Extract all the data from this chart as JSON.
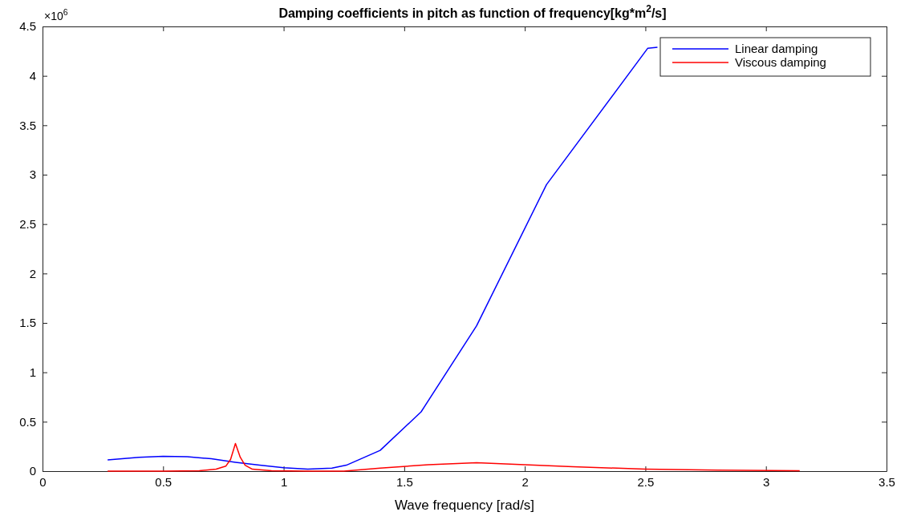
{
  "chart_data": {
    "type": "line",
    "title": "Damping coefficients in pitch as function of frequency[kg*m$^{2}$/s]",
    "xlabel": "Wave frequency [rad/s]",
    "annotations": [
      "×10$^{6}$"
    ],
    "xlim": [
      0,
      3.5
    ],
    "xticks": [
      0,
      0.5,
      1,
      1.5,
      2,
      2.5,
      3,
      3.5
    ],
    "ylim": [
      0,
      4.5
    ],
    "yticks": [
      0,
      0.5,
      1,
      1.5,
      2,
      2.5,
      3,
      3.5,
      4,
      4.5
    ],
    "grid": false,
    "legend": "top right",
    "marker": "none",
    "line_style": "solid",
    "series": [
      {
        "name": "Linear damping",
        "color": "#0000ff",
        "x": [
          0.27,
          0.4,
          0.5,
          0.6,
          0.7,
          0.8,
          0.9,
          1.0,
          1.1,
          1.2,
          1.26,
          1.4,
          1.57,
          1.8,
          2.09,
          2.51,
          2.55
        ],
        "values": [
          0.114,
          0.14,
          0.15,
          0.145,
          0.125,
          0.09,
          0.06,
          0.035,
          0.02,
          0.03,
          0.06,
          0.21,
          0.6,
          1.47,
          2.9,
          4.28,
          4.29
        ]
      },
      {
        "name": "Viscous damping",
        "color": "#ff0000",
        "x": [
          0.27,
          0.5,
          0.65,
          0.72,
          0.76,
          0.78,
          0.8,
          0.82,
          0.84,
          0.87,
          0.95,
          1.1,
          1.25,
          1.4,
          1.6,
          1.8,
          2.0,
          2.2,
          2.5,
          2.8,
          3.14
        ],
        "values": [
          0,
          0,
          0.005,
          0.02,
          0.05,
          0.12,
          0.28,
          0.14,
          0.06,
          0.02,
          0.005,
          0,
          0,
          0.03,
          0.065,
          0.085,
          0.065,
          0.045,
          0.02,
          0.01,
          0.005
        ]
      }
    ]
  }
}
